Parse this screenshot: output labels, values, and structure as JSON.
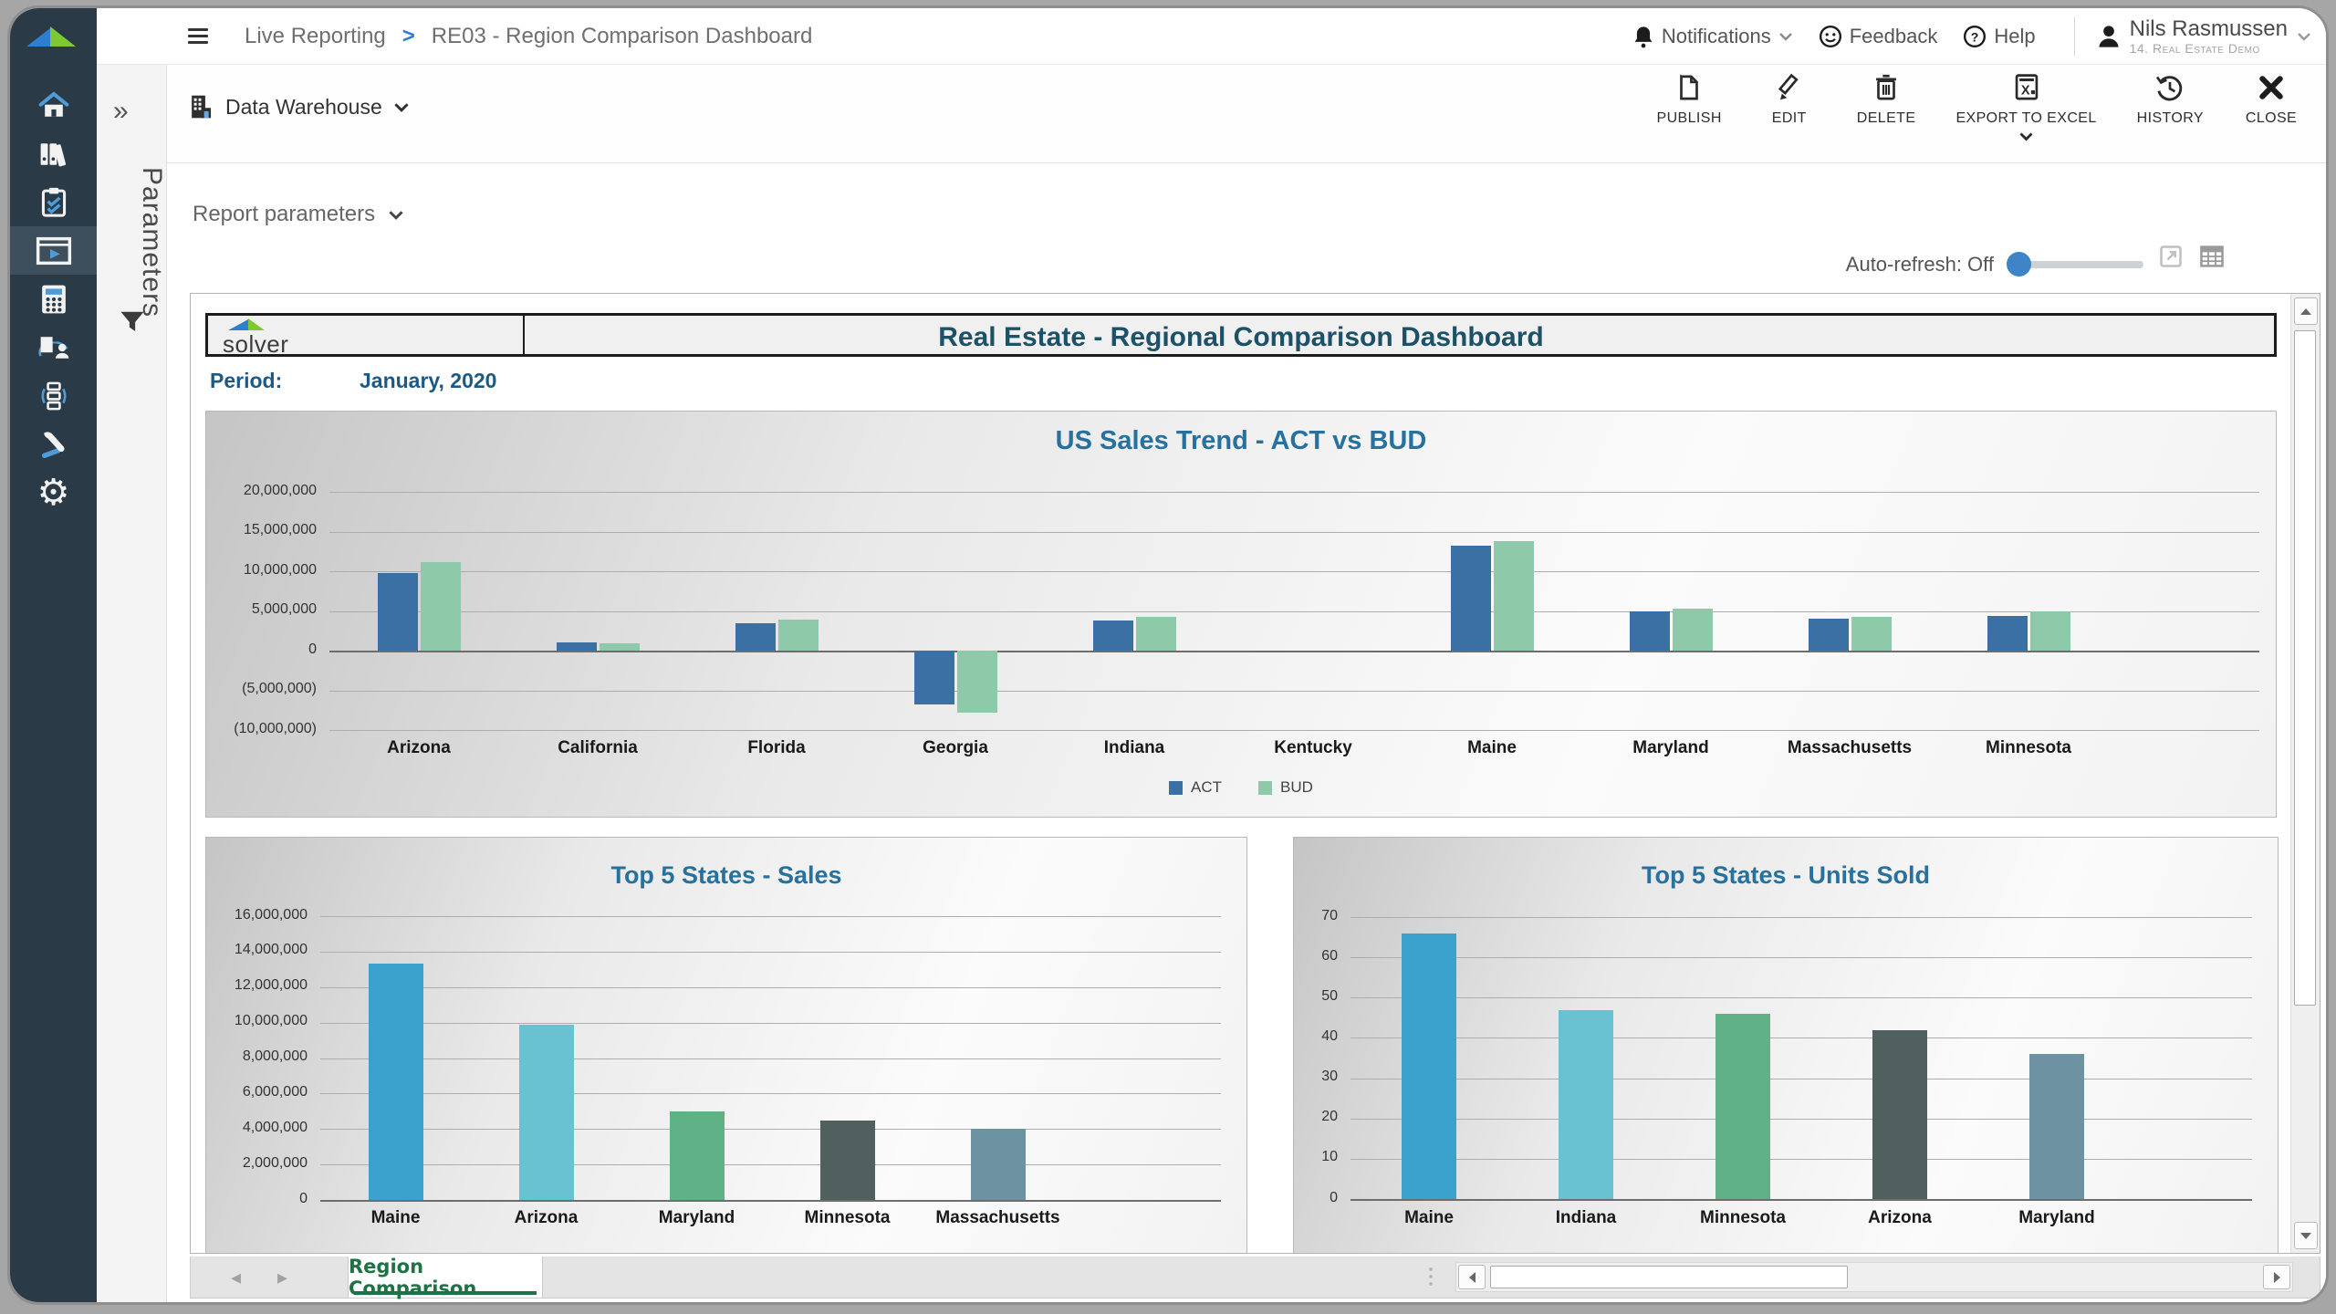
{
  "topbar": {
    "breadcrumb": {
      "section": "Live Reporting",
      "separator": ">",
      "page": "RE03 - Region Comparison Dashboard"
    },
    "notifications_label": "Notifications",
    "feedback_label": "Feedback",
    "help_label": "Help",
    "user": {
      "name": "Nils Rasmussen",
      "company": "14. Real Estate Demo"
    }
  },
  "toolbar": {
    "source_label": "Data Warehouse",
    "buttons": [
      {
        "label": "PUBLISH",
        "icon": "publish-icon"
      },
      {
        "label": "EDIT",
        "icon": "edit-icon"
      },
      {
        "label": "DELETE",
        "icon": "delete-icon"
      },
      {
        "label": "EXPORT TO EXCEL",
        "icon": "excel-icon"
      },
      {
        "label": "HISTORY",
        "icon": "history-icon"
      },
      {
        "label": "CLOSE",
        "icon": "close-icon"
      }
    ]
  },
  "params_rail": {
    "expand_glyph": "»",
    "label": "Parameters",
    "icon": "filter-icon"
  },
  "filters": {
    "report_parameters_label": "Report parameters"
  },
  "view_controls": {
    "auto_refresh_label": "Auto-refresh: Off"
  },
  "sidebar_icons": [
    "home-icon",
    "binders-icon",
    "tasks-clipboard-icon",
    "live-reporting-icon",
    "calculator-icon",
    "document-user-icon",
    "workflow-icon",
    "tools-icon",
    "gear-icon"
  ],
  "report": {
    "logo_text": "solver",
    "title": "Real Estate - Regional Comparison Dashboard",
    "period_label": "Period:",
    "period_value": "January, 2020"
  },
  "footer": {
    "active_tab": "Region Comparison"
  },
  "colors": {
    "act_blue": "#3a70a3",
    "bud_green": "#8ecaaa",
    "accent_blue": "#3f84c7",
    "tab_green": "#1e7245",
    "sidebar_bg": "#2b3a47"
  },
  "chart_data": [
    {
      "type": "bar",
      "title": "US Sales Trend - ACT vs BUD",
      "categories": [
        "Arizona",
        "California",
        "Florida",
        "Georgia",
        "Indiana",
        "Kentucky",
        "Maine",
        "Maryland",
        "Massachusetts",
        "Minnesota"
      ],
      "series": [
        {
          "name": "ACT",
          "color": "#3a70a3",
          "values": [
            9800000,
            1000000,
            3500000,
            -6800000,
            3800000,
            0,
            13200000,
            4900000,
            4000000,
            4400000
          ]
        },
        {
          "name": "BUD",
          "color": "#8ecaaa",
          "values": [
            11200000,
            900000,
            3900000,
            -7800000,
            4200000,
            0,
            13800000,
            5300000,
            4300000,
            4900000
          ]
        }
      ],
      "xlabel": "",
      "ylabel": "",
      "ylim": [
        -10000000,
        20000000
      ],
      "ytick": 5000000,
      "grid": true,
      "legend_position": "bottom"
    },
    {
      "type": "bar",
      "title": "Top 5 States - Sales",
      "categories": [
        "Maine",
        "Arizona",
        "Maryland",
        "Minnesota",
        "Massachusetts"
      ],
      "values": [
        13300000,
        9900000,
        5000000,
        4500000,
        4000000
      ],
      "bar_colors": [
        "#3ba1cd",
        "#68c2d2",
        "#60b185",
        "#50605f",
        "#6d92a1"
      ],
      "xlabel": "",
      "ylabel": "",
      "ylim": [
        0,
        16000000
      ],
      "ytick": 2000000,
      "grid": true
    },
    {
      "type": "bar",
      "title": "Top 5 States - Units Sold",
      "categories": [
        "Maine",
        "Indiana",
        "Minnesota",
        "Arizona",
        "Maryland"
      ],
      "values": [
        66,
        47,
        46,
        42,
        36
      ],
      "bar_colors": [
        "#3ba1cd",
        "#68c2d2",
        "#60b185",
        "#50605f",
        "#6d92a1"
      ],
      "xlabel": "",
      "ylabel": "",
      "ylim": [
        0,
        70
      ],
      "ytick": 10,
      "grid": true
    }
  ]
}
